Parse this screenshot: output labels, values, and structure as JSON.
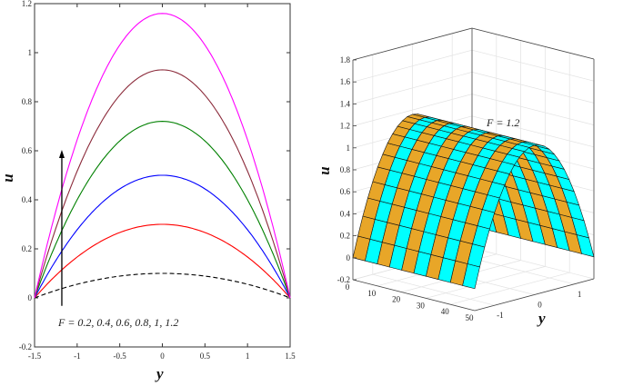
{
  "chart_data": [
    {
      "type": "line",
      "title": "",
      "xlabel": "y",
      "ylabel": "u",
      "xlim": [
        -1.5,
        1.5
      ],
      "ylim": [
        -0.2,
        1.2
      ],
      "xticks": [
        "-1.5",
        "-1",
        "-0.5",
        "0",
        "0.5",
        "1",
        "1.5"
      ],
      "yticks": [
        "-0.2",
        "0",
        "0.2",
        "0.4",
        "0.6",
        "0.8",
        "1",
        "1.2"
      ],
      "annotation": "F = 0.2, 0.4, 0.6, 0.8, 1, 1.2",
      "arrow": {
        "x": -1.18,
        "from": -0.01,
        "to": 0.6
      },
      "series": [
        {
          "name": "F = 0.2",
          "peak": 0.1,
          "color": "#000000",
          "dashed": true
        },
        {
          "name": "F = 0.4",
          "peak": 0.3,
          "color": "#FF0000",
          "dashed": false
        },
        {
          "name": "F = 0.6",
          "peak": 0.5,
          "color": "#0000FF",
          "dashed": false
        },
        {
          "name": "F = 0.8",
          "peak": 0.72,
          "color": "#008000",
          "dashed": false
        },
        {
          "name": "F = 1",
          "peak": 0.93,
          "color": "#8B2A3A",
          "dashed": false
        },
        {
          "name": "F = 1.2",
          "peak": 1.16,
          "color": "#FF00FF",
          "dashed": false
        }
      ],
      "profile": "u = peak * (1 - (y/1.5)^2)"
    },
    {
      "type": "surface",
      "title": "",
      "annotation": "F = 1.2",
      "xlabel": "",
      "ylabel": "y",
      "zlabel": "u",
      "xlim": [
        0,
        50
      ],
      "ylim": [
        -1.5,
        1.5
      ],
      "zlim": [
        -0.2,
        1.8
      ],
      "xticks": [
        "0",
        "10",
        "20",
        "30",
        "40",
        "50"
      ],
      "yticks": [
        "-1",
        "0",
        "1"
      ],
      "zticks": [
        "-0.2",
        "0",
        "0.2",
        "0.4",
        "0.6",
        "0.8",
        "1",
        "1.2",
        "1.4",
        "1.6",
        "1.8"
      ],
      "peak": 1.16,
      "colors": [
        "#E8A628",
        "#00FFFF"
      ]
    }
  ]
}
